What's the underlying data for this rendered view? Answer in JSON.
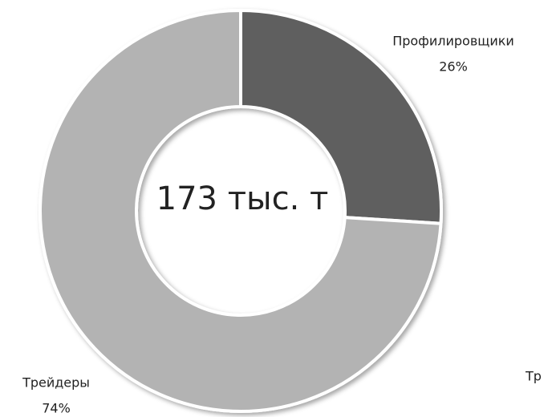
{
  "chart_data": {
    "type": "donut",
    "categories": [
      "Профилировщики",
      "Трейдеры"
    ],
    "values": [
      26,
      74
    ],
    "value_labels": [
      "26%",
      "74%"
    ],
    "colors": [
      "#5e5e5e",
      "#b3b3b3"
    ],
    "center_label": "173 тыс. т",
    "annotations": [
      "Тр"
    ]
  }
}
